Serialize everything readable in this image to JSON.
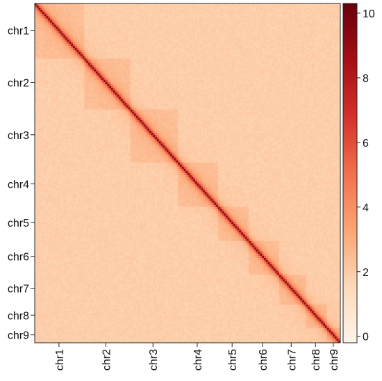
{
  "chart_data": {
    "type": "heatmap",
    "title": "",
    "xlabel": "",
    "ylabel": "",
    "chromosomes": [
      "chr1",
      "chr2",
      "chr3",
      "chr4",
      "chr5",
      "chr6",
      "chr7",
      "chr8",
      "chr9"
    ],
    "relative_lengths": [
      1.5,
      1.4,
      1.52,
      1.22,
      0.94,
      0.94,
      0.84,
      0.66,
      0.44
    ],
    "colorbar": {
      "range": [
        -0.2,
        10.3
      ],
      "ticks": [
        0,
        2,
        4,
        6,
        8,
        10
      ],
      "tick_labels": [
        "0",
        "2",
        "4",
        "6",
        "8",
        "10"
      ],
      "colors": [
        "#fff5eb",
        "#fdd9b8",
        "#fca474",
        "#f2704d",
        "#d4302a",
        "#a50f15",
        "#67000d"
      ]
    },
    "values": {
      "background": 1.9,
      "intra_chromosome": 2.4,
      "near_diagonal": 4.5,
      "diagonal": 8.0
    },
    "grid": false,
    "legend": "right"
  }
}
